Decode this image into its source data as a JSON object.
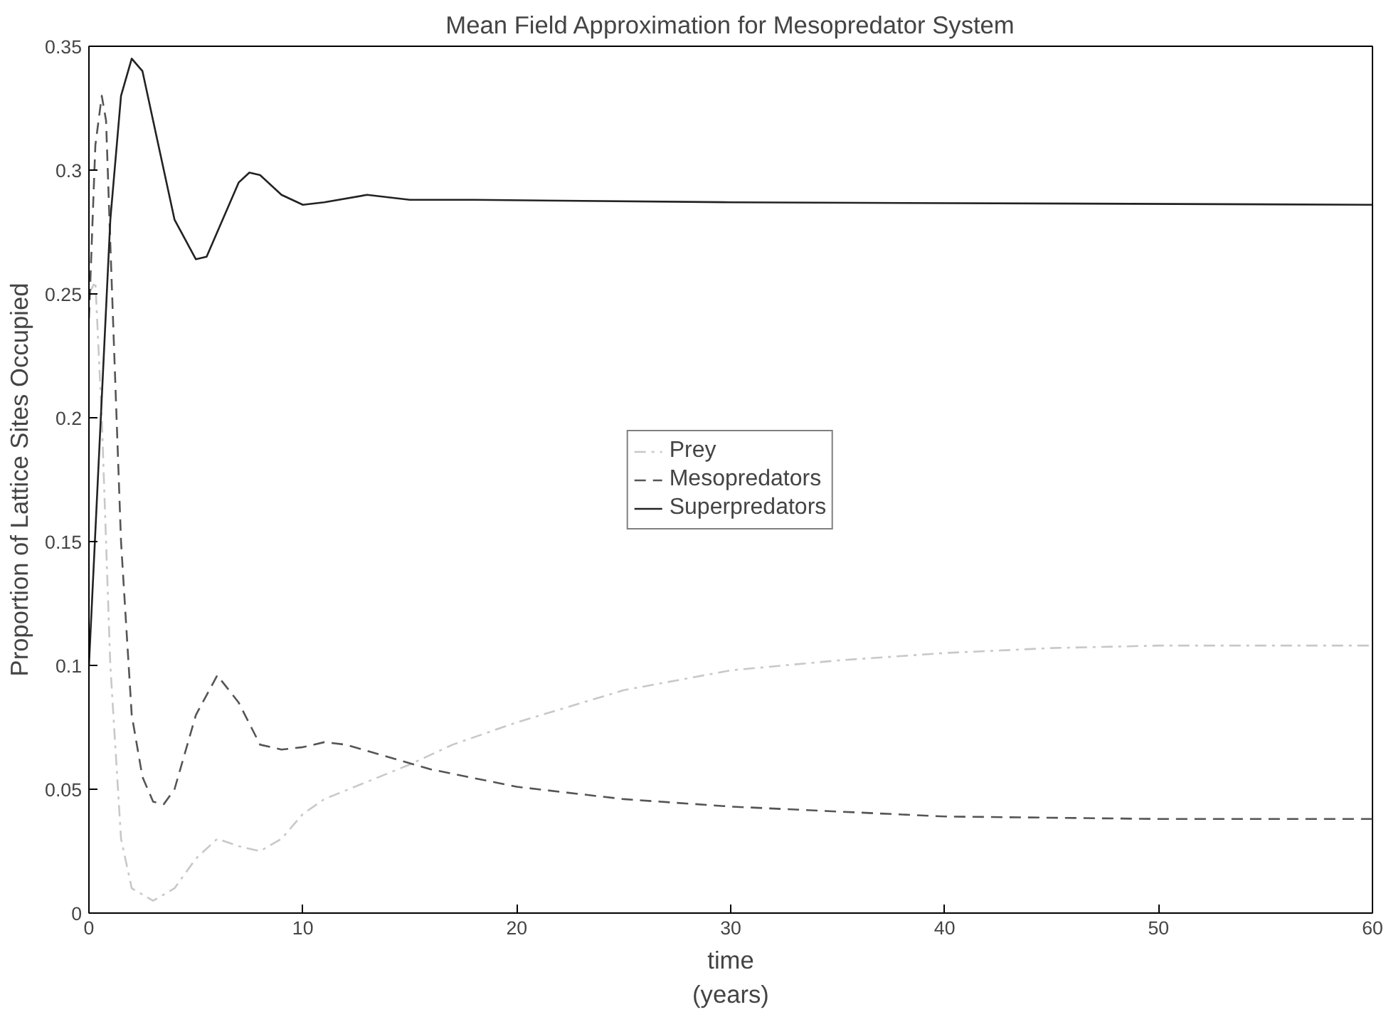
{
  "chart_data": {
    "type": "line",
    "title": "Mean Field Approximation for Mesopredator System",
    "xlabel": "time\n(years)",
    "ylabel": "Proportion of Lattice Sites Occupied",
    "xlim": [
      0,
      60
    ],
    "ylim": [
      0,
      0.35
    ],
    "xticks": [
      0,
      10,
      20,
      30,
      40,
      50,
      60
    ],
    "yticks": [
      0,
      0.05,
      0.1,
      0.15,
      0.2,
      0.25,
      0.3,
      0.35
    ],
    "grid": false,
    "legend": "center",
    "marker": "none",
    "series": [
      {
        "name": "Prey",
        "color": "#c8c8c8",
        "line_style": "dashdot",
        "x": [
          0,
          0.3,
          0.6,
          1,
          1.5,
          2,
          3,
          4,
          5,
          6,
          7,
          8,
          9,
          10,
          11,
          13,
          15,
          17,
          20,
          25,
          30,
          35,
          40,
          45,
          50,
          60
        ],
        "values": [
          0.25,
          0.255,
          0.2,
          0.1,
          0.03,
          0.01,
          0.005,
          0.01,
          0.022,
          0.03,
          0.027,
          0.025,
          0.03,
          0.04,
          0.046,
          0.053,
          0.06,
          0.068,
          0.077,
          0.09,
          0.098,
          0.102,
          0.105,
          0.107,
          0.108,
          0.108
        ]
      },
      {
        "name": "Mesopredators",
        "color": "#555555",
        "line_style": "dashed",
        "x": [
          0,
          0.3,
          0.6,
          0.8,
          1,
          1.5,
          2,
          2.5,
          3,
          3.5,
          4,
          5,
          6,
          7,
          8,
          9,
          10,
          11,
          12,
          14,
          16,
          20,
          25,
          30,
          40,
          50,
          60
        ],
        "values": [
          0.24,
          0.31,
          0.33,
          0.32,
          0.27,
          0.15,
          0.08,
          0.055,
          0.045,
          0.044,
          0.05,
          0.08,
          0.096,
          0.085,
          0.068,
          0.066,
          0.067,
          0.069,
          0.068,
          0.063,
          0.058,
          0.051,
          0.046,
          0.043,
          0.039,
          0.038,
          0.038
        ]
      },
      {
        "name": "Superpredators",
        "color": "#222222",
        "line_style": "solid",
        "x": [
          0,
          0.5,
          1,
          1.5,
          2,
          2.5,
          3,
          4,
          5,
          5.5,
          6,
          7,
          7.5,
          8,
          9,
          10,
          11,
          13,
          15,
          18,
          30,
          60
        ],
        "values": [
          0.1,
          0.19,
          0.28,
          0.33,
          0.345,
          0.34,
          0.32,
          0.28,
          0.264,
          0.265,
          0.275,
          0.295,
          0.299,
          0.298,
          0.29,
          0.286,
          0.287,
          0.29,
          0.288,
          0.288,
          0.287,
          0.286
        ]
      }
    ]
  }
}
